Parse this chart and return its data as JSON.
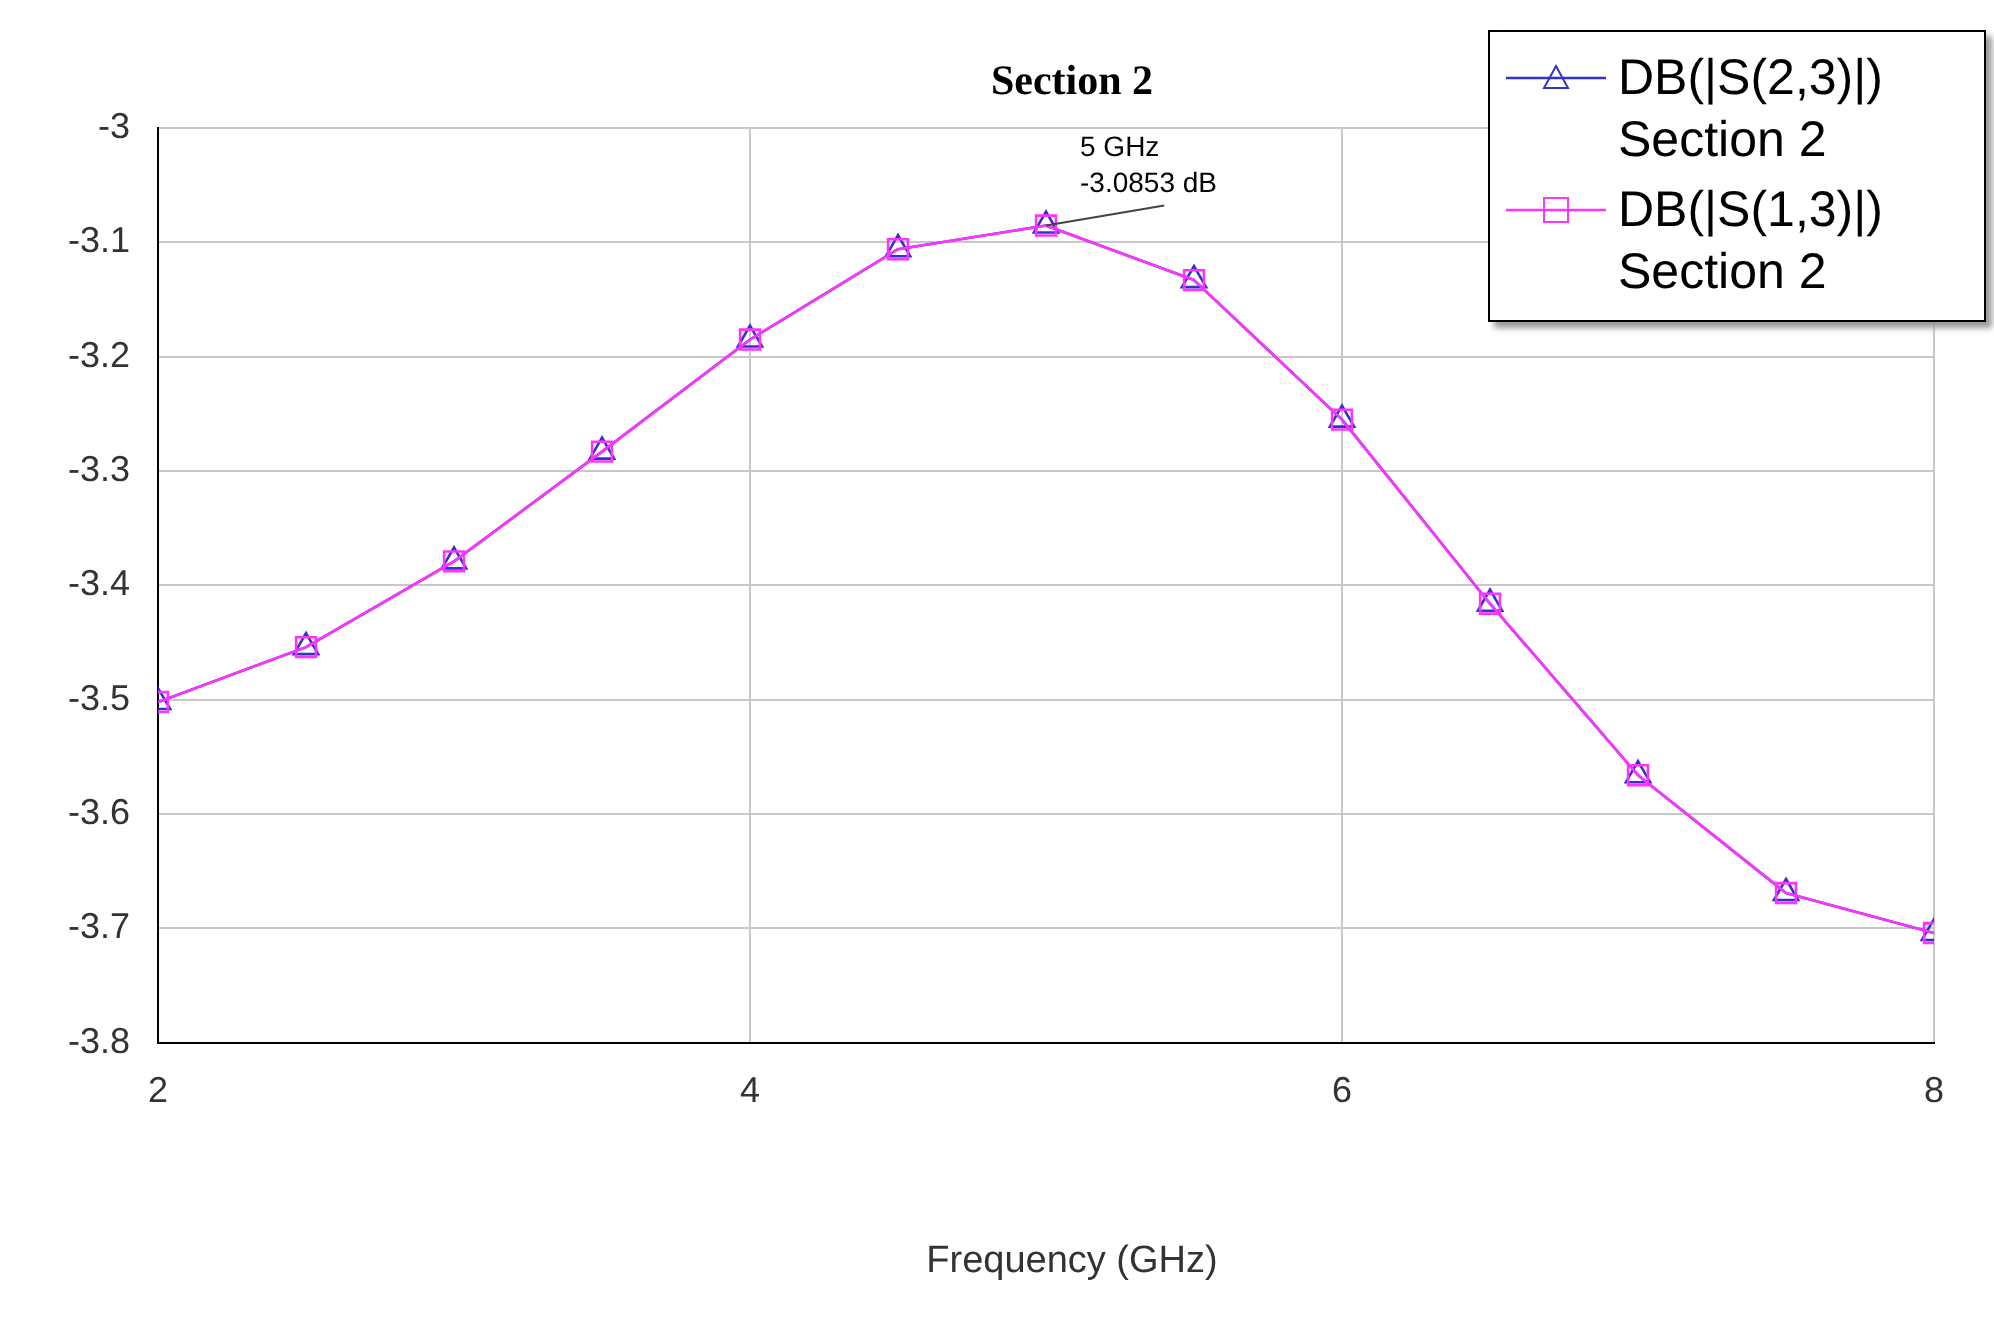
{
  "chart_data": {
    "type": "line",
    "title": "Section 2",
    "xlabel": "Frequency (GHz)",
    "x": [
      2,
      2.5,
      3,
      3.5,
      4,
      4.5,
      5,
      5.5,
      6,
      6.5,
      7,
      7.5,
      8
    ],
    "series": [
      {
        "name": "DB(|S(2,3)|) Section 2",
        "color": "#3333cc",
        "marker": "triangle",
        "values": [
          -3.502,
          -3.454,
          -3.379,
          -3.283,
          -3.185,
          -3.106,
          -3.0853,
          -3.133,
          -3.255,
          -3.416,
          -3.566,
          -3.669,
          -3.704
        ]
      },
      {
        "name": "DB(|S(1,3)|) Section 2",
        "color": "#ff33ff",
        "marker": "square",
        "values": [
          -3.502,
          -3.454,
          -3.379,
          -3.283,
          -3.185,
          -3.106,
          -3.0853,
          -3.133,
          -3.255,
          -3.416,
          -3.566,
          -3.669,
          -3.704
        ]
      }
    ],
    "xlim": [
      2,
      8
    ],
    "xticks": [
      2,
      4,
      6,
      8
    ],
    "ylim": [
      -3.8,
      -3
    ],
    "yticks": [
      -3.8,
      -3.7,
      -3.6,
      -3.5,
      -3.4,
      -3.3,
      -3.2,
      -3.1,
      {
        "value": -3,
        "label": "-3"
      }
    ],
    "grid": true,
    "legend": "top right",
    "line_style": "solid",
    "annotations": [
      {
        "text": "5 GHz\n-3.0853 dB",
        "x": 5,
        "y": -3.0853
      }
    ]
  }
}
